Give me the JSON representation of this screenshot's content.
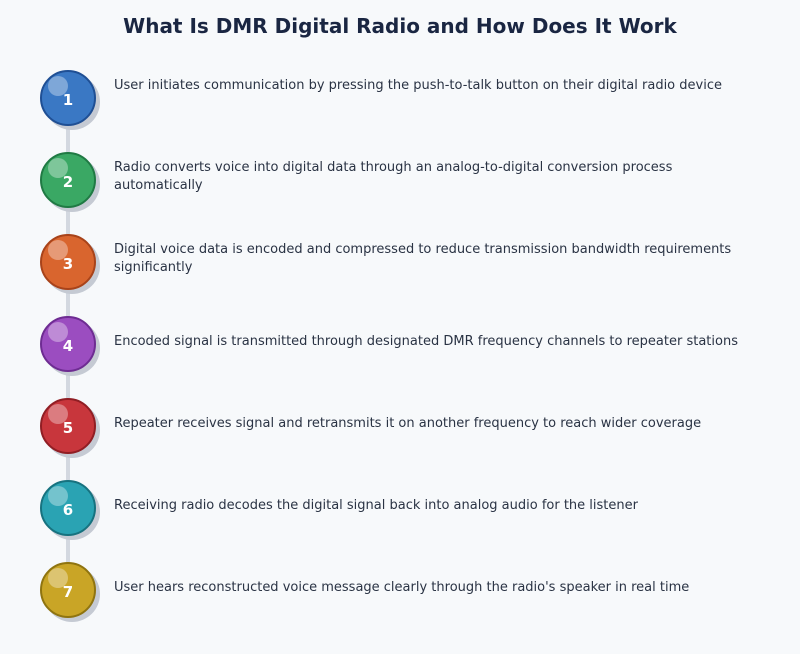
{
  "title": "What Is DMR Digital Radio and How Does It Work",
  "steps": [
    {
      "num": "1",
      "text": "User initiates communication by pressing the push-to-talk button on their digital radio device",
      "color": "#3a78c4",
      "border": "#1f4f94"
    },
    {
      "num": "2",
      "text": "Radio converts voice into digital data through an analog-to-digital conversion process automatically",
      "color": "#3aa864",
      "border": "#207a44"
    },
    {
      "num": "3",
      "text": "Digital voice data is encoded and compressed to reduce transmission bandwidth requirements significantly",
      "color": "#d9652e",
      "border": "#a8431a"
    },
    {
      "num": "4",
      "text": "Encoded signal is transmitted through designated DMR frequency channels to repeater stations",
      "color": "#9b4dc0",
      "border": "#6e2c92"
    },
    {
      "num": "5",
      "text": "Repeater receives signal and retransmits it on another frequency to reach wider coverage",
      "color": "#c8363c",
      "border": "#901e24"
    },
    {
      "num": "6",
      "text": "Receiving radio decodes the digital signal back into analog audio for the listener",
      "color": "#2aa3b3",
      "border": "#17727f"
    },
    {
      "num": "7",
      "text": "User hears reconstructed voice message clearly through the radio's speaker in real time",
      "color": "#c9a526",
      "border": "#8f7410"
    }
  ]
}
